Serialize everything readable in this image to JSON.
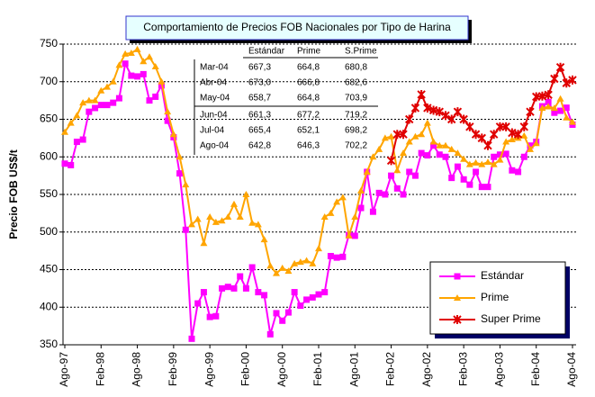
{
  "chart_data": {
    "type": "line",
    "title": "Comportamiento de Precios FOB Nacionales por Tipo de Harina",
    "ylabel": "Precio FOB US$/t",
    "categories": [
      "Ago-97",
      null,
      null,
      null,
      null,
      null,
      "Feb-98",
      null,
      null,
      null,
      null,
      null,
      "Ago-98",
      null,
      null,
      null,
      null,
      null,
      "Feb-99",
      null,
      null,
      null,
      null,
      null,
      "Ago-99",
      null,
      null,
      null,
      null,
      null,
      "Feb-00",
      null,
      null,
      null,
      null,
      null,
      "Ago-00",
      null,
      null,
      null,
      null,
      null,
      "Feb-01",
      null,
      null,
      null,
      null,
      null,
      "Ago-01",
      null,
      null,
      null,
      null,
      null,
      "Feb-02",
      null,
      null,
      null,
      null,
      null,
      "Ago-02",
      null,
      null,
      null,
      null,
      null,
      "Feb-03",
      null,
      null,
      null,
      null,
      null,
      "Ago-03",
      null,
      null,
      null,
      null,
      null,
      "Feb-04",
      null,
      null,
      null,
      null,
      null,
      "Ago-04"
    ],
    "series": [
      {
        "name": "Estándar",
        "color": "#ff00ff",
        "marker": "square",
        "values": [
          591,
          589,
          620,
          623,
          660,
          665,
          669,
          669,
          672,
          678,
          724,
          708,
          707,
          710,
          675,
          680,
          695,
          648,
          626,
          578,
          503,
          358,
          405,
          420,
          387,
          388,
          425,
          427,
          425,
          441,
          425,
          453,
          420,
          416,
          364,
          392,
          382,
          393,
          420,
          402,
          410,
          413,
          417,
          420,
          468,
          466,
          467,
          496,
          495,
          532,
          580,
          527,
          552,
          550,
          575,
          558,
          550,
          580,
          575,
          605,
          602,
          615,
          603,
          600,
          572,
          587,
          570,
          563,
          580,
          560,
          560,
          600,
          603,
          604,
          582,
          580,
          600,
          615,
          620,
          667.3,
          673.0,
          658.7,
          661.3,
          665.4,
          642.8
        ]
      },
      {
        "name": "Prime",
        "color": "#ffa500",
        "marker": "triangle",
        "values": [
          633,
          645,
          655,
          672,
          675,
          675,
          688,
          693,
          700,
          722,
          737,
          738,
          743,
          727,
          733,
          720,
          700,
          660,
          630,
          600,
          563,
          510,
          517,
          485,
          520,
          513,
          515,
          520,
          537,
          520,
          550,
          512,
          510,
          490,
          455,
          445,
          452,
          448,
          458,
          460,
          462,
          458,
          478,
          520,
          525,
          540,
          546,
          495,
          520,
          555,
          580,
          600,
          610,
          625,
          627,
          582,
          605,
          620,
          627,
          630,
          645,
          620,
          615,
          615,
          610,
          605,
          597,
          590,
          592,
          590,
          593,
          590,
          596,
          620,
          623,
          625,
          628,
          610,
          618,
          664.8,
          666.8,
          664.8,
          677.2,
          652.1,
          646.3
        ]
      },
      {
        "name": "Super Prime",
        "color": "#e00000",
        "marker": "star",
        "values": [
          null,
          null,
          null,
          null,
          null,
          null,
          null,
          null,
          null,
          null,
          null,
          null,
          null,
          null,
          null,
          null,
          null,
          null,
          null,
          null,
          null,
          null,
          null,
          null,
          null,
          null,
          null,
          null,
          null,
          null,
          null,
          null,
          null,
          null,
          null,
          null,
          null,
          null,
          null,
          null,
          null,
          null,
          null,
          null,
          null,
          null,
          null,
          null,
          null,
          null,
          null,
          null,
          null,
          null,
          595,
          630,
          630,
          650,
          665,
          683,
          665,
          662,
          660,
          655,
          650,
          660,
          650,
          640,
          630,
          625,
          615,
          630,
          640,
          640,
          632,
          630,
          640,
          660,
          680,
          680.8,
          682.6,
          703.9,
          719.2,
          698.2,
          702.2
        ]
      }
    ],
    "ylim": [
      350,
      750
    ],
    "yticks": [
      350,
      400,
      450,
      500,
      550,
      600,
      650,
      700,
      750
    ],
    "grid": true,
    "legend": "lower right",
    "table": {
      "columns": [
        "Estándar",
        "Prime",
        "S.Prime"
      ],
      "rows": [
        [
          "Mar-04",
          "667,3",
          "664,8",
          "680,8"
        ],
        [
          "Abr-04",
          "673,0",
          "666,8",
          "682,6"
        ],
        [
          "May-04",
          "658,7",
          "664,8",
          "703,9"
        ],
        [
          "Jun-04",
          "661,3",
          "677,2",
          "719,2"
        ],
        [
          "Jul-04",
          "665,4",
          "652,1",
          "698,2"
        ],
        [
          "Ago-04",
          "642,8",
          "646,3",
          "702,2"
        ]
      ]
    }
  }
}
